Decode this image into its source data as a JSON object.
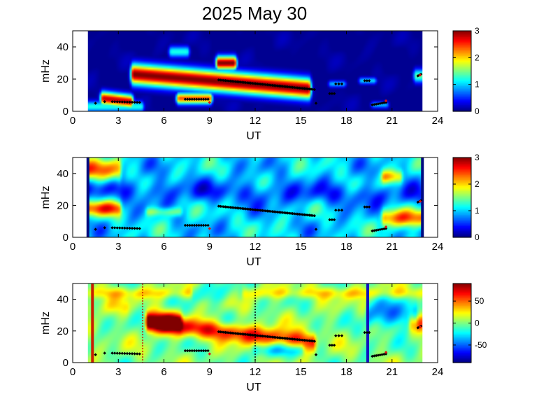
{
  "chart_data": [
    {
      "type": "heatmap",
      "panel": "top",
      "title": "2025 May 30",
      "xlabel": "UT",
      "ylabel": "mHz",
      "xlim": [
        0,
        24
      ],
      "ylim": [
        0,
        50
      ],
      "xticks": [
        "0",
        "3",
        "6",
        "9",
        "12",
        "15",
        "18",
        "21",
        "24"
      ],
      "yticks": [
        "0",
        "20",
        "40"
      ],
      "data_range_ut": [
        1.0,
        23.0
      ],
      "colormap": "jet",
      "colorbar": {
        "range": [
          0,
          3
        ],
        "ticks": [
          "0",
          "1",
          "2",
          "3"
        ]
      },
      "features": [
        {
          "t0": 4.0,
          "t1": 15.5,
          "f0": 23,
          "f1": 14,
          "width": 9,
          "level": 3.0
        },
        {
          "t0": 9.6,
          "t1": 10.6,
          "f0": 30,
          "f1": 30,
          "width": 6,
          "level": 3.0
        },
        {
          "t0": 2.0,
          "t1": 3.8,
          "f0": 8,
          "f1": 6,
          "width": 6,
          "level": 2.8
        },
        {
          "t0": 7.0,
          "t1": 9.0,
          "f0": 8,
          "f1": 8,
          "width": 5,
          "level": 2.4
        },
        {
          "t0": 6.5,
          "t1": 7.5,
          "f0": 37,
          "f1": 37,
          "width": 5,
          "level": 1.2
        },
        {
          "t0": 1.0,
          "t1": 4.5,
          "f0": 3,
          "f1": 3,
          "width": 5,
          "level": 1.2
        },
        {
          "t0": 17.0,
          "t1": 17.8,
          "f0": 17,
          "f1": 17,
          "width": 3,
          "level": 0.9
        },
        {
          "t0": 19.0,
          "t1": 19.8,
          "f0": 19,
          "f1": 19,
          "width": 3,
          "level": 1.0
        },
        {
          "t0": 19.8,
          "t1": 20.6,
          "f0": 4,
          "f1": 4,
          "width": 3,
          "level": 0.9
        },
        {
          "t0": 22.6,
          "t1": 23.0,
          "f0": 22,
          "f1": 22,
          "width": 6,
          "level": 1.4
        }
      ],
      "background_level": 0.05
    },
    {
      "type": "heatmap",
      "panel": "middle",
      "xlabel": "UT",
      "ylabel": "mHz",
      "xlim": [
        0,
        24
      ],
      "ylim": [
        0,
        50
      ],
      "xticks": [
        "0",
        "3",
        "6",
        "9",
        "12",
        "15",
        "18",
        "21",
        "24"
      ],
      "yticks": [
        "0",
        "20",
        "40"
      ],
      "data_range_ut": [
        1.0,
        23.0
      ],
      "colormap": "jet",
      "colorbar": {
        "range": [
          0,
          3
        ],
        "ticks": [
          "0",
          "1",
          "2",
          "3"
        ]
      },
      "features": [
        {
          "t0": 1.0,
          "t1": 3.0,
          "f0": 42,
          "f1": 42,
          "width": 10,
          "level": 2.2
        },
        {
          "t0": 1.0,
          "t1": 3.0,
          "f0": 18,
          "f1": 18,
          "width": 7,
          "level": 2.3
        },
        {
          "t0": 20.5,
          "t1": 23.0,
          "f0": 12,
          "f1": 12,
          "width": 8,
          "level": 2.3
        },
        {
          "t0": 20.5,
          "t1": 21.5,
          "f0": 38,
          "f1": 38,
          "width": 6,
          "level": 2.0
        },
        {
          "t0": 5.0,
          "t1": 7.0,
          "f0": 16,
          "f1": 16,
          "width": 4,
          "level": 1.6
        },
        {
          "t0": 1.0,
          "t1": 23.0,
          "f0": 30,
          "f1": 26,
          "width": 10,
          "level": 0.6
        }
      ],
      "background_level": 1.0,
      "edge_bars_ut": [
        1.0,
        23.0
      ]
    },
    {
      "type": "heatmap",
      "panel": "bottom",
      "xlabel": "UT",
      "ylabel": "mHz",
      "xlim": [
        0,
        24
      ],
      "ylim": [
        0,
        50
      ],
      "xticks": [
        "0",
        "3",
        "6",
        "9",
        "12",
        "15",
        "18",
        "21",
        "24"
      ],
      "yticks": [
        "0",
        "20",
        "40"
      ],
      "data_range_ut": [
        1.0,
        23.0
      ],
      "colormap": "jet",
      "colorbar": {
        "range": [
          -90,
          90
        ],
        "ticks": [
          "50",
          "0",
          "-50"
        ],
        "tick_values": [
          50,
          0,
          -50
        ]
      },
      "features": [
        {
          "t0": 5.0,
          "t1": 15.8,
          "f0": 25,
          "f1": 13,
          "width": 8,
          "level": 65
        },
        {
          "t0": 5.0,
          "t1": 7.0,
          "f0": 26,
          "f1": 26,
          "width": 8,
          "level": 75
        },
        {
          "t0": 1.0,
          "t1": 3.5,
          "f0": 35,
          "f1": 35,
          "width": 8,
          "level": 15
        },
        {
          "t0": 8.0,
          "t1": 11.0,
          "f0": 44,
          "f1": 44,
          "width": 6,
          "level": -40
        },
        {
          "t0": 12.0,
          "t1": 15.0,
          "f0": 8,
          "f1": 8,
          "width": 6,
          "level": -30
        },
        {
          "t0": 19.5,
          "t1": 22.5,
          "f0": 30,
          "f1": 30,
          "width": 12,
          "level": -45
        },
        {
          "t0": 22.3,
          "t1": 23.0,
          "f0": 25,
          "f1": 25,
          "width": 8,
          "level": 50
        },
        {
          "t0": 1.0,
          "t1": 23.0,
          "f0": 44,
          "f1": 44,
          "width": 5,
          "level": 25
        }
      ],
      "background_level": 0,
      "vertical_markers": [
        {
          "ut": 1.3,
          "style": "solid",
          "color": "#c81e00"
        },
        {
          "ut": 4.6,
          "style": "dotted",
          "color": "#c81e00"
        },
        {
          "ut": 12.0,
          "style": "dotted",
          "color": "#000000"
        },
        {
          "ut": 19.4,
          "style": "solid",
          "color": "#1010c0"
        }
      ]
    }
  ],
  "track_points": {
    "groups": [
      {
        "t0": 1.5,
        "t1": 1.5,
        "f0": 5,
        "f1": 5,
        "n": 1
      },
      {
        "t0": 2.1,
        "t1": 2.1,
        "f0": 6,
        "f1": 6,
        "n": 1
      },
      {
        "t0": 2.6,
        "t1": 4.4,
        "f0": 6,
        "f1": 5.5,
        "n": 12
      },
      {
        "t0": 7.4,
        "t1": 8.9,
        "f0": 7.5,
        "f1": 7.5,
        "n": 11
      },
      {
        "t0": 9.6,
        "t1": 15.9,
        "f0": 19.5,
        "f1": 13.5,
        "n": 58
      },
      {
        "t0": 16.0,
        "t1": 16.0,
        "f0": 5,
        "f1": 5,
        "n": 1
      },
      {
        "t0": 16.9,
        "t1": 17.2,
        "f0": 11,
        "f1": 11,
        "n": 3
      },
      {
        "t0": 17.3,
        "t1": 17.7,
        "f0": 17,
        "f1": 17,
        "n": 3
      },
      {
        "t0": 19.2,
        "t1": 19.5,
        "f0": 19,
        "f1": 19,
        "n": 3
      },
      {
        "t0": 19.7,
        "t1": 20.6,
        "f0": 4,
        "f1": 5.5,
        "n": 8
      },
      {
        "t0": 22.7,
        "t1": 22.9,
        "f0": 22,
        "f1": 23,
        "n": 3
      }
    ],
    "red_points": [
      {
        "t": 9.0,
        "f": 5.5
      },
      {
        "t": 20.6,
        "f": 6.5
      },
      {
        "t": 22.85,
        "f": 22.5
      }
    ],
    "color": "#000000"
  }
}
